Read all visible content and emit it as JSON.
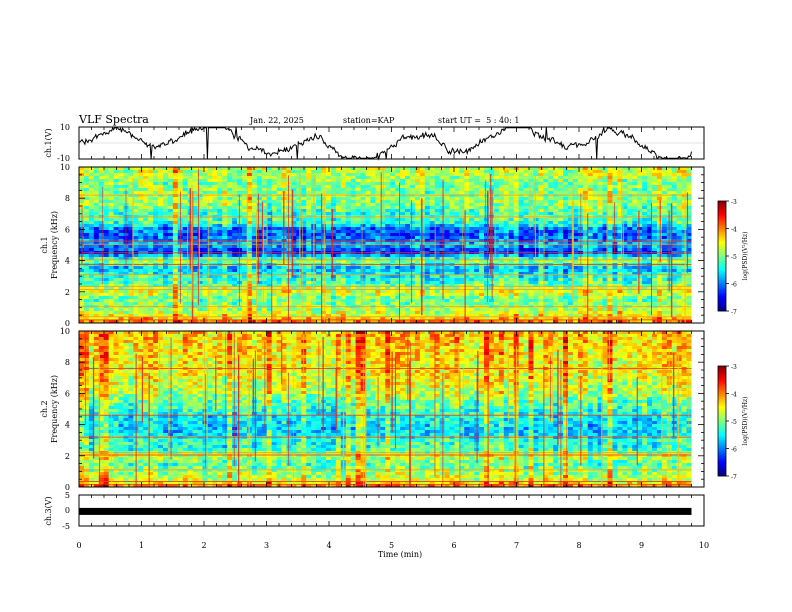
{
  "header": {
    "title": "VLF Spectra",
    "date": "Jan. 22, 2025",
    "station": "station=KAP",
    "start_ut": "start UT =  5 : 40: 1"
  },
  "colors": {
    "background": "#ffffff",
    "axes": "#000000",
    "trace": "#000000"
  },
  "chart_data": [
    {
      "type": "line",
      "panel": "ch1-waveform",
      "ylabel": "ch.1(V)",
      "ylim": [
        -10,
        10
      ],
      "ytick_labels": [
        "10",
        "-10"
      ],
      "x_range_min": [
        0,
        9.8
      ],
      "description_values": "noisy voltage trace fluctuating roughly between -8 V and +8 V"
    },
    {
      "type": "heatmap",
      "panel": "ch1-spectrogram",
      "ylabel": "ch.1",
      "ylabel2": "Frequency (kHz)",
      "ylim": [
        0,
        10
      ],
      "ytick_labels": [
        "0",
        "2",
        "4",
        "6",
        "8",
        "10"
      ],
      "x_range_min": [
        0,
        9.8
      ],
      "profile_freq_khz": [
        0,
        0.5,
        1,
        1.5,
        2,
        2.5,
        3,
        3.5,
        4,
        4.5,
        5,
        5.5,
        6,
        6.5,
        7,
        7.5,
        8,
        8.5,
        9,
        9.5,
        10
      ],
      "profile_log_psd": [
        -3.8,
        -4.6,
        -4.9,
        -5.1,
        -4.6,
        -5.2,
        -5.4,
        -5.8,
        -4.9,
        -6.4,
        -5.8,
        -6.1,
        -6.1,
        -5.2,
        -5.3,
        -5.0,
        -4.9,
        -5.0,
        -5.0,
        -4.8,
        -4.7
      ],
      "lines_khz": [
        0.2,
        0.4,
        1.05,
        2.15,
        2.35,
        3.1,
        3.75,
        4.05,
        4.5,
        5.05,
        5.25,
        6.8,
        8.2
      ]
    },
    {
      "type": "heatmap",
      "panel": "ch2-spectrogram",
      "ylabel": "ch.2",
      "ylabel2": "Frequency (kHz)",
      "ylim": [
        0,
        10
      ],
      "ytick_labels": [
        "0",
        "2",
        "4",
        "6",
        "8",
        "10"
      ],
      "x_range_min": [
        0,
        9.8
      ],
      "profile_freq_khz": [
        0,
        0.5,
        1,
        1.5,
        2,
        2.5,
        3,
        3.5,
        4,
        4.5,
        5,
        5.5,
        6,
        6.5,
        7,
        7.5,
        8,
        8.5,
        9,
        9.5,
        10
      ],
      "profile_log_psd": [
        -3.9,
        -4.7,
        -4.9,
        -5.2,
        -4.7,
        -5.4,
        -5.3,
        -5.7,
        -5.6,
        -5.5,
        -5.3,
        -5.1,
        -4.8,
        -4.7,
        -4.6,
        -4.5,
        -4.5,
        -4.4,
        -4.4,
        -4.3,
        -4.3
      ],
      "lines_khz": [
        0.15,
        0.35,
        1.1,
        2.05,
        2.2,
        3.2,
        4.6,
        7.6
      ]
    },
    {
      "type": "line",
      "panel": "ch3-waveform",
      "ylabel": "ch.3(V)",
      "ylim": [
        -5,
        5
      ],
      "ytick_labels": [
        "5",
        "0",
        "-5"
      ],
      "x_range_min": [
        0,
        9.8
      ],
      "constant_value": -0.3
    }
  ],
  "colorbar": {
    "label": "log(PSD)(V²/Hz)",
    "range": [
      -7,
      -3
    ],
    "tick_labels": [
      "-3",
      "-4",
      "-5",
      "-6",
      "-7"
    ]
  },
  "x_axis": {
    "label": "Time (min)",
    "range": [
      0,
      10
    ],
    "tick_labels": [
      "0",
      "1",
      "2",
      "3",
      "4",
      "5",
      "6",
      "7",
      "8",
      "9",
      "10"
    ]
  }
}
